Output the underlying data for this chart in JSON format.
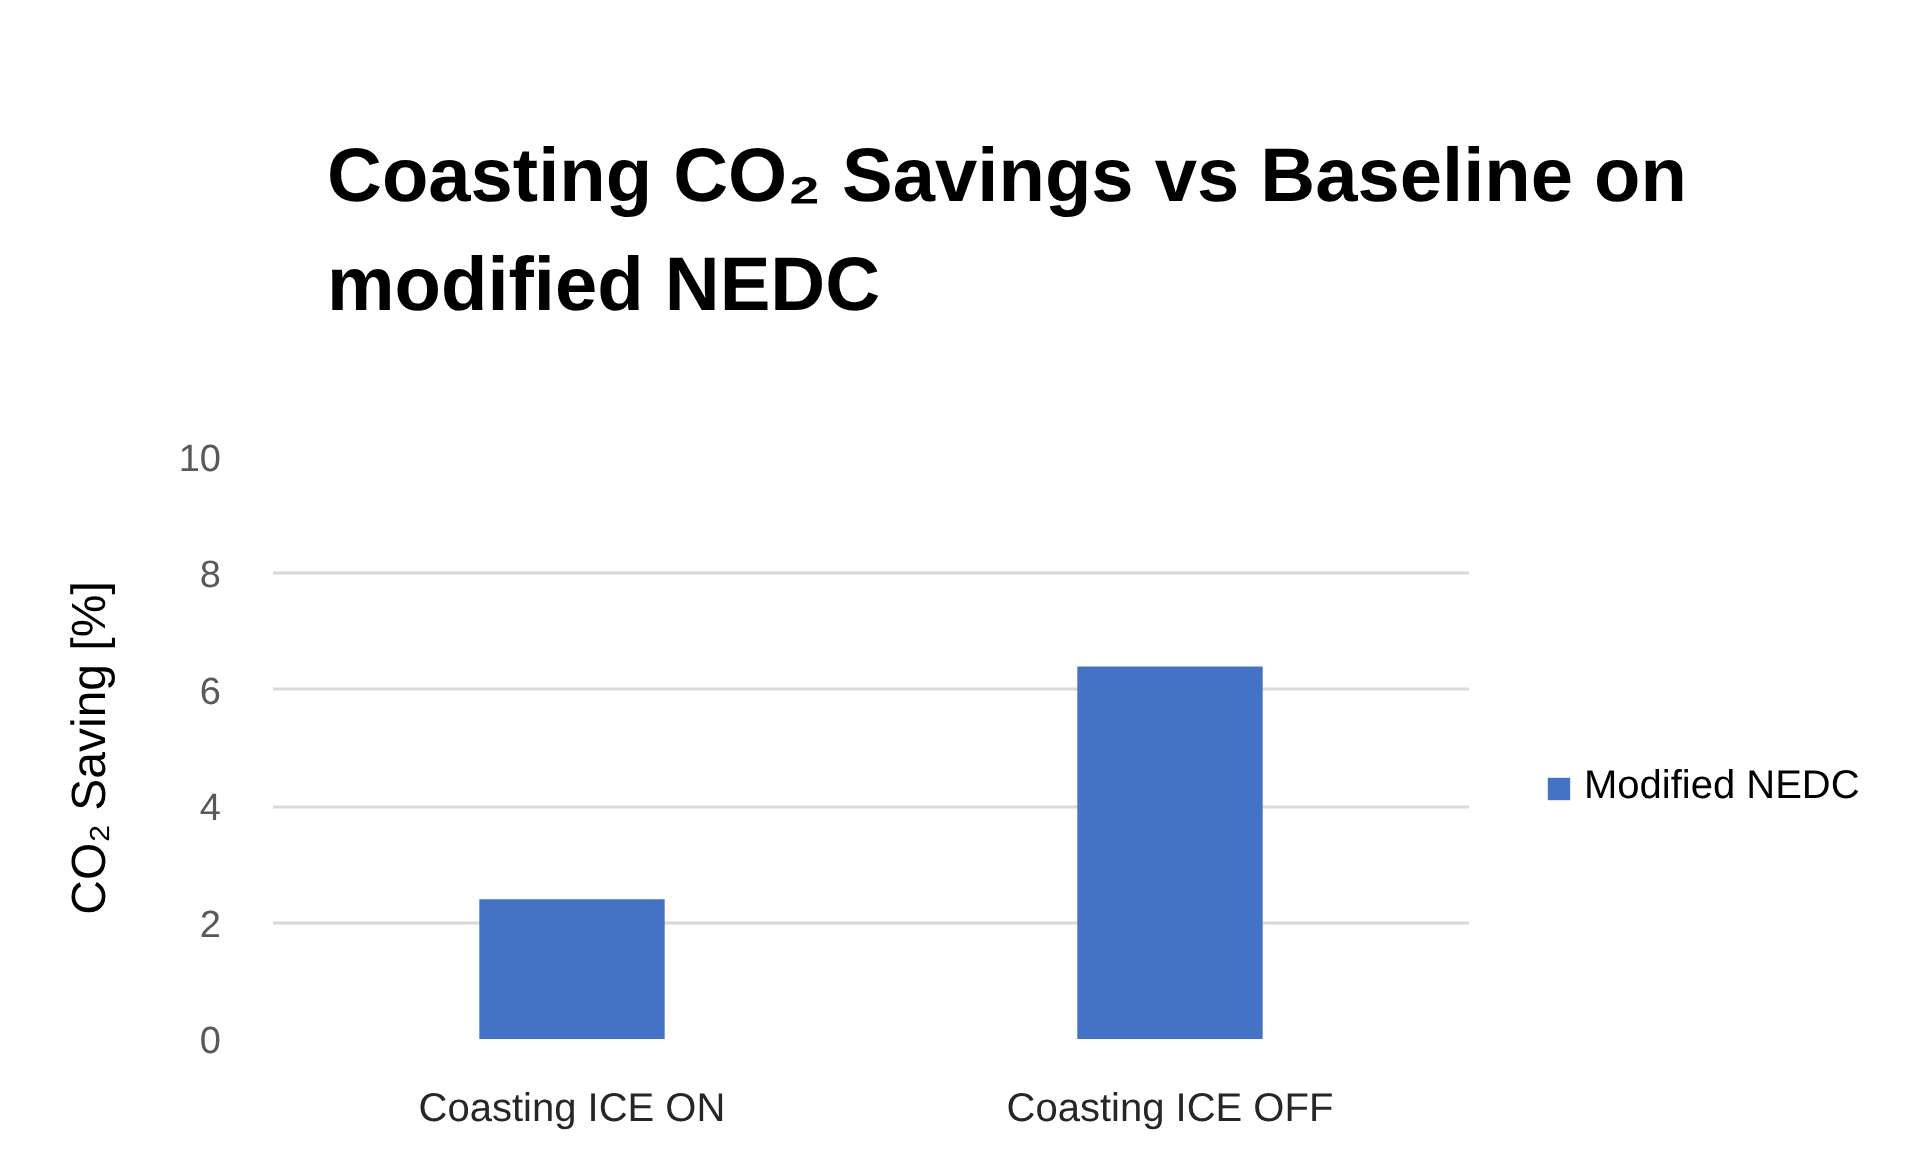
{
  "chart_data": {
    "type": "bar",
    "title": "Coasting CO₂ Savings vs Baseline on modified NEDC",
    "ylabel": "CO₂ Saving [%]",
    "categories": [
      "Coasting ICE ON",
      "Coasting ICE OFF"
    ],
    "series": [
      {
        "name": "Modified NEDC",
        "color": "#4472c4",
        "values": [
          2.4,
          6.4
        ]
      }
    ],
    "ylim": [
      0,
      10
    ],
    "yticks": [
      0,
      2,
      4,
      6,
      8,
      10
    ],
    "grid": "y",
    "legend": "right"
  }
}
